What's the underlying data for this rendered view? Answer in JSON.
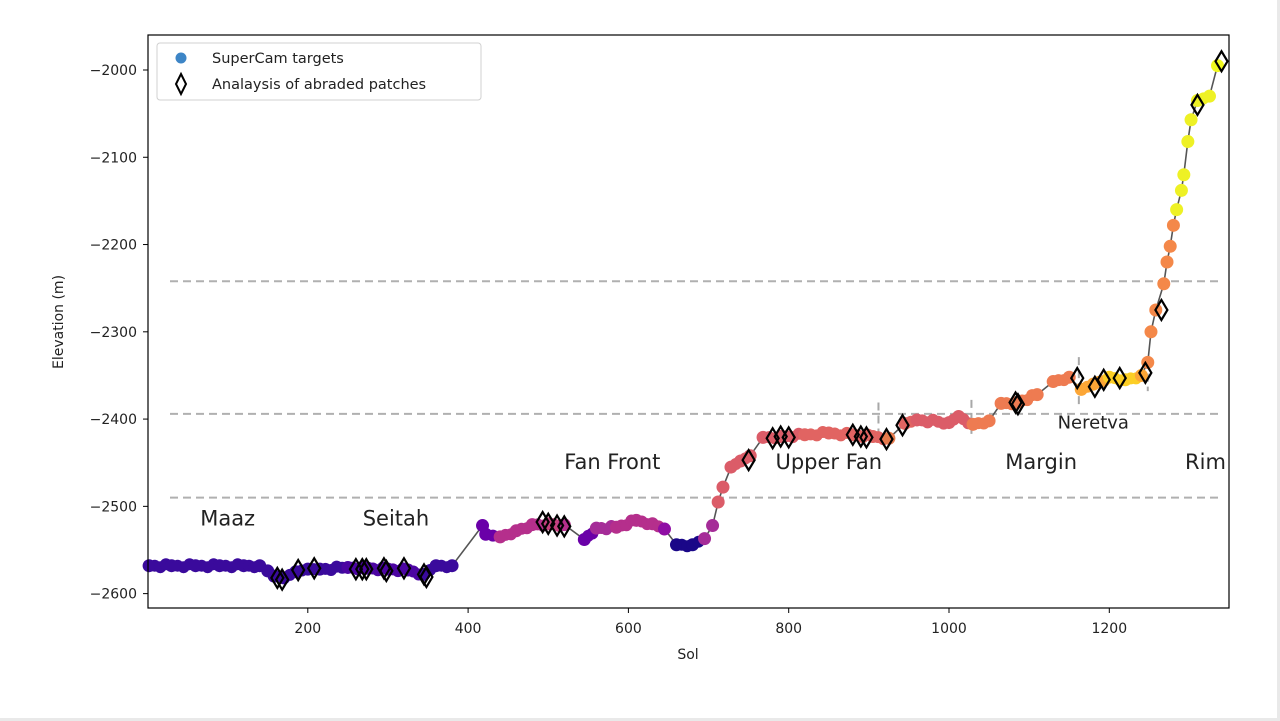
{
  "chart_data": {
    "type": "scatter",
    "title": "",
    "xlabel": "Sol",
    "ylabel": "Elevation (m)",
    "xlim": [
      1,
      1352
    ],
    "ylim": [
      -2616,
      -1959
    ],
    "xticks": [
      200,
      400,
      600,
      800,
      1000,
      1200
    ],
    "yticks": [
      -2000,
      -2100,
      -2200,
      -2300,
      -2400,
      -2500,
      -2600
    ],
    "grid": false,
    "legend_position": "upper left",
    "legend": [
      {
        "label": "SuperCam targets",
        "marker": "circle",
        "color": "#3d85c6"
      },
      {
        "label": "Analaysis of abraded patches",
        "marker": "diamond-open",
        "color": "#000000"
      }
    ],
    "horizontal_reference_lines": [
      {
        "y": -2242,
        "style": "dashed",
        "color": "#b0b0b0"
      },
      {
        "y": -2394,
        "style": "dashed",
        "color": "#b0b0b0"
      },
      {
        "y": -2490,
        "style": "dashed",
        "color": "#b0b0b0"
      }
    ],
    "vertical_reference_segments": [
      {
        "x": 912,
        "y_range": [
          -2427,
          -2381
        ],
        "style": "dashed"
      },
      {
        "x": 1028,
        "y_range": [
          -2421,
          -2378
        ],
        "style": "dashed"
      },
      {
        "x": 1162,
        "y_range": [
          -2388,
          -2329
        ],
        "style": "dashed"
      },
      {
        "x": 1248,
        "y_range": [
          -2368,
          -2333
        ],
        "style": "dashed"
      }
    ],
    "region_labels": [
      {
        "text": "Maaz",
        "x": 100,
        "y": -2522
      },
      {
        "text": "Seitah",
        "x": 310,
        "y": -2522
      },
      {
        "text": "Fan Front",
        "x": 580,
        "y": -2457
      },
      {
        "text": "Upper Fan",
        "x": 850,
        "y": -2457
      },
      {
        "text": "Margin",
        "x": 1115,
        "y": -2457
      },
      {
        "text": "Neretva",
        "x": 1180,
        "y": -2411
      },
      {
        "text": "Rim",
        "x": 1320,
        "y": -2457
      }
    ],
    "series": [
      {
        "name": "SuperCam targets",
        "colormap": "plasma (by elevation band / sol)",
        "points": [
          {
            "sol": 2,
            "elev": -2568,
            "c": "#3a0a9c"
          },
          {
            "sol": 30,
            "elev": -2568,
            "c": "#3a0a9c"
          },
          {
            "sol": 60,
            "elev": -2568,
            "c": "#3a0a9c"
          },
          {
            "sol": 90,
            "elev": -2568,
            "c": "#3a0a9c"
          },
          {
            "sol": 120,
            "elev": -2568,
            "c": "#3a0a9c"
          },
          {
            "sol": 140,
            "elev": -2568,
            "c": "#3a0a9c"
          },
          {
            "sol": 150,
            "elev": -2574,
            "c": "#3a0a9c"
          },
          {
            "sol": 158,
            "elev": -2580,
            "c": "#3a0a9c"
          },
          {
            "sol": 170,
            "elev": -2582,
            "c": "#3a0a9c"
          },
          {
            "sol": 185,
            "elev": -2575,
            "c": "#3a0a9c"
          },
          {
            "sol": 200,
            "elev": -2572,
            "c": "#3a0a9c"
          },
          {
            "sol": 215,
            "elev": -2572,
            "c": "#3a0a9c"
          },
          {
            "sol": 250,
            "elev": -2570,
            "c": "#4c05a2"
          },
          {
            "sol": 275,
            "elev": -2571,
            "c": "#4c05a2"
          },
          {
            "sol": 300,
            "elev": -2572,
            "c": "#4c05a2"
          },
          {
            "sol": 325,
            "elev": -2573,
            "c": "#4c05a2"
          },
          {
            "sol": 345,
            "elev": -2578,
            "c": "#3a0a9c"
          },
          {
            "sol": 360,
            "elev": -2568,
            "c": "#3a0a9c"
          },
          {
            "sol": 380,
            "elev": -2568,
            "c": "#3a0a9c"
          },
          {
            "sol": 418,
            "elev": -2522,
            "c": "#6a00a8"
          },
          {
            "sol": 422,
            "elev": -2532,
            "c": "#6a00a8"
          },
          {
            "sol": 440,
            "elev": -2535,
            "c": "#b52f8c"
          },
          {
            "sol": 460,
            "elev": -2528,
            "c": "#b52f8c"
          },
          {
            "sol": 480,
            "elev": -2521,
            "c": "#b52f8c"
          },
          {
            "sol": 500,
            "elev": -2520,
            "c": "#c5407e"
          },
          {
            "sol": 520,
            "elev": -2521,
            "c": "#b52f8c"
          },
          {
            "sol": 545,
            "elev": -2538,
            "c": "#6a00a8"
          },
          {
            "sol": 560,
            "elev": -2525,
            "c": "#a52c98"
          },
          {
            "sol": 585,
            "elev": -2524,
            "c": "#b52f8c"
          },
          {
            "sol": 610,
            "elev": -2516,
            "c": "#b52f8c"
          },
          {
            "sol": 630,
            "elev": -2520,
            "c": "#b52f8c"
          },
          {
            "sol": 645,
            "elev": -2526,
            "c": "#8f0da4"
          },
          {
            "sol": 660,
            "elev": -2544,
            "c": "#1a0788"
          },
          {
            "sol": 680,
            "elev": -2544,
            "c": "#1a0788"
          },
          {
            "sol": 695,
            "elev": -2537,
            "c": "#a52c98"
          },
          {
            "sol": 705,
            "elev": -2522,
            "c": "#a52c98"
          },
          {
            "sol": 712,
            "elev": -2495,
            "c": "#db5c68"
          },
          {
            "sol": 718,
            "elev": -2478,
            "c": "#db5c68"
          },
          {
            "sol": 728,
            "elev": -2455,
            "c": "#db5c68"
          },
          {
            "sol": 740,
            "elev": -2448,
            "c": "#db5c68"
          },
          {
            "sol": 752,
            "elev": -2442,
            "c": "#db5c68"
          },
          {
            "sol": 768,
            "elev": -2421,
            "c": "#db5c68"
          },
          {
            "sol": 790,
            "elev": -2420,
            "c": "#db5c68"
          },
          {
            "sol": 820,
            "elev": -2418,
            "c": "#e16462"
          },
          {
            "sol": 850,
            "elev": -2416,
            "c": "#e16462"
          },
          {
            "sol": 880,
            "elev": -2418,
            "c": "#e16462"
          },
          {
            "sol": 905,
            "elev": -2420,
            "c": "#e16462"
          },
          {
            "sol": 925,
            "elev": -2422,
            "c": "#e57a4c"
          },
          {
            "sol": 945,
            "elev": -2405,
            "c": "#e16462"
          },
          {
            "sol": 960,
            "elev": -2401,
            "c": "#db5c68"
          },
          {
            "sol": 1000,
            "elev": -2404,
            "c": "#db5c68"
          },
          {
            "sol": 1012,
            "elev": -2397,
            "c": "#db5c68"
          },
          {
            "sol": 1030,
            "elev": -2406,
            "c": "#ee7b51"
          },
          {
            "sol": 1050,
            "elev": -2402,
            "c": "#ee7b51"
          },
          {
            "sol": 1065,
            "elev": -2382,
            "c": "#ee7b51"
          },
          {
            "sol": 1085,
            "elev": -2381,
            "c": "#ee7b51"
          },
          {
            "sol": 1110,
            "elev": -2372,
            "c": "#ee7b51"
          },
          {
            "sol": 1130,
            "elev": -2357,
            "c": "#ee7b51"
          },
          {
            "sol": 1150,
            "elev": -2352,
            "c": "#ee7b51"
          },
          {
            "sol": 1165,
            "elev": -2366,
            "c": "#fca636"
          },
          {
            "sol": 1180,
            "elev": -2360,
            "c": "#fca636"
          },
          {
            "sol": 1200,
            "elev": -2352,
            "c": "#fcce25"
          },
          {
            "sol": 1220,
            "elev": -2355,
            "c": "#fcce25"
          },
          {
            "sol": 1240,
            "elev": -2350,
            "c": "#fca636"
          },
          {
            "sol": 1248,
            "elev": -2335,
            "c": "#f48849"
          },
          {
            "sol": 1252,
            "elev": -2300,
            "c": "#f48849"
          },
          {
            "sol": 1258,
            "elev": -2275,
            "c": "#f48849"
          },
          {
            "sol": 1268,
            "elev": -2245,
            "c": "#f48849"
          },
          {
            "sol": 1272,
            "elev": -2220,
            "c": "#f48849"
          },
          {
            "sol": 1276,
            "elev": -2202,
            "c": "#f48849"
          },
          {
            "sol": 1280,
            "elev": -2178,
            "c": "#f48849"
          },
          {
            "sol": 1284,
            "elev": -2160,
            "c": "#eef125"
          },
          {
            "sol": 1290,
            "elev": -2138,
            "c": "#eef125"
          },
          {
            "sol": 1293,
            "elev": -2120,
            "c": "#eef125"
          },
          {
            "sol": 1298,
            "elev": -2082,
            "c": "#eef125"
          },
          {
            "sol": 1302,
            "elev": -2057,
            "c": "#eef125"
          },
          {
            "sol": 1310,
            "elev": -2035,
            "c": "#eef125"
          },
          {
            "sol": 1325,
            "elev": -2030,
            "c": "#eef125"
          },
          {
            "sol": 1335,
            "elev": -1995,
            "c": "#f0f921"
          }
        ]
      },
      {
        "name": "Analaysis of abraded patches",
        "marker": "diamond-open",
        "points": [
          {
            "sol": 162,
            "elev": -2582
          },
          {
            "sol": 168,
            "elev": -2584
          },
          {
            "sol": 188,
            "elev": -2573
          },
          {
            "sol": 208,
            "elev": -2571
          },
          {
            "sol": 260,
            "elev": -2572
          },
          {
            "sol": 268,
            "elev": -2572
          },
          {
            "sol": 273,
            "elev": -2572
          },
          {
            "sol": 295,
            "elev": -2571
          },
          {
            "sol": 298,
            "elev": -2574
          },
          {
            "sol": 320,
            "elev": -2571
          },
          {
            "sol": 345,
            "elev": -2578
          },
          {
            "sol": 348,
            "elev": -2581
          },
          {
            "sol": 493,
            "elev": -2518
          },
          {
            "sol": 500,
            "elev": -2520
          },
          {
            "sol": 511,
            "elev": -2522
          },
          {
            "sol": 520,
            "elev": -2523
          },
          {
            "sol": 750,
            "elev": -2447
          },
          {
            "sol": 780,
            "elev": -2422
          },
          {
            "sol": 790,
            "elev": -2420
          },
          {
            "sol": 800,
            "elev": -2421
          },
          {
            "sol": 880,
            "elev": -2418
          },
          {
            "sol": 890,
            "elev": -2420
          },
          {
            "sol": 897,
            "elev": -2421
          },
          {
            "sol": 922,
            "elev": -2423
          },
          {
            "sol": 942,
            "elev": -2407
          },
          {
            "sol": 1083,
            "elev": -2381
          },
          {
            "sol": 1086,
            "elev": -2383
          },
          {
            "sol": 1160,
            "elev": -2353
          },
          {
            "sol": 1182,
            "elev": -2363
          },
          {
            "sol": 1193,
            "elev": -2355
          },
          {
            "sol": 1213,
            "elev": -2353
          },
          {
            "sol": 1245,
            "elev": -2347
          },
          {
            "sol": 1265,
            "elev": -2275
          },
          {
            "sol": 1310,
            "elev": -2040
          },
          {
            "sol": 1340,
            "elev": -1990
          }
        ]
      }
    ]
  }
}
